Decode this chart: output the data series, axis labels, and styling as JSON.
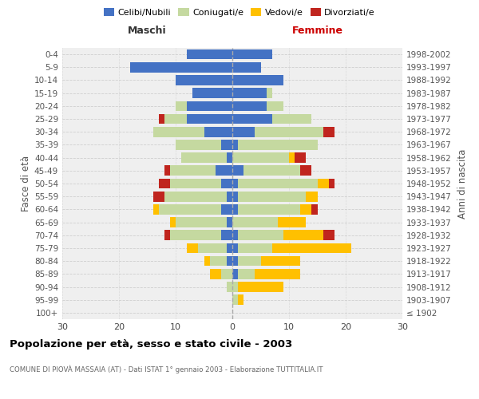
{
  "age_groups": [
    "100+",
    "95-99",
    "90-94",
    "85-89",
    "80-84",
    "75-79",
    "70-74",
    "65-69",
    "60-64",
    "55-59",
    "50-54",
    "45-49",
    "40-44",
    "35-39",
    "30-34",
    "25-29",
    "20-24",
    "15-19",
    "10-14",
    "5-9",
    "0-4"
  ],
  "birth_years": [
    "≤ 1902",
    "1903-1907",
    "1908-1912",
    "1913-1917",
    "1918-1922",
    "1923-1927",
    "1928-1932",
    "1933-1937",
    "1938-1942",
    "1943-1947",
    "1948-1952",
    "1953-1957",
    "1958-1962",
    "1963-1967",
    "1968-1972",
    "1973-1977",
    "1978-1982",
    "1983-1987",
    "1988-1992",
    "1993-1997",
    "1998-2002"
  ],
  "maschi": {
    "celibe": [
      0,
      0,
      0,
      0,
      1,
      1,
      2,
      1,
      2,
      1,
      2,
      3,
      1,
      2,
      5,
      8,
      8,
      7,
      10,
      18,
      8
    ],
    "coniugato": [
      0,
      0,
      1,
      2,
      3,
      5,
      9,
      9,
      11,
      11,
      9,
      8,
      8,
      8,
      9,
      4,
      2,
      0,
      0,
      0,
      0
    ],
    "vedovo": [
      0,
      0,
      0,
      2,
      1,
      2,
      0,
      1,
      1,
      0,
      0,
      0,
      0,
      0,
      0,
      0,
      0,
      0,
      0,
      0,
      0
    ],
    "divorziato": [
      0,
      0,
      0,
      0,
      0,
      0,
      1,
      0,
      0,
      2,
      2,
      1,
      0,
      0,
      0,
      1,
      0,
      0,
      0,
      0,
      0
    ]
  },
  "femmine": {
    "nubile": [
      0,
      0,
      0,
      1,
      1,
      1,
      1,
      0,
      1,
      1,
      1,
      2,
      0,
      1,
      4,
      7,
      6,
      6,
      9,
      5,
      7
    ],
    "coniugata": [
      0,
      1,
      1,
      3,
      4,
      6,
      8,
      8,
      11,
      12,
      14,
      10,
      10,
      14,
      12,
      7,
      3,
      1,
      0,
      0,
      0
    ],
    "vedova": [
      0,
      1,
      8,
      8,
      7,
      14,
      7,
      5,
      2,
      2,
      2,
      0,
      1,
      0,
      0,
      0,
      0,
      0,
      0,
      0,
      0
    ],
    "divorziata": [
      0,
      0,
      0,
      0,
      0,
      0,
      2,
      0,
      1,
      0,
      1,
      2,
      2,
      0,
      2,
      0,
      0,
      0,
      0,
      0,
      0
    ]
  },
  "colors": {
    "celibe": "#4472c4",
    "coniugato": "#c5d9a0",
    "vedovo": "#ffc000",
    "divorziato": "#c0251e"
  },
  "xlim": 30,
  "title": "Popolazione per età, sesso e stato civile - 2003",
  "subtitle": "COMUNE DI PIOVÀ MASSAIA (AT) - Dati ISTAT 1° gennaio 2003 - Elaborazione TUTTITALIA.IT",
  "ylabel_left": "Fasce di età",
  "ylabel_right": "Anni di nascita",
  "xlabel_maschi": "Maschi",
  "xlabel_femmine": "Femmine",
  "legend_labels": [
    "Celibi/Nubili",
    "Coniugati/e",
    "Vedovi/e",
    "Divorziati/e"
  ],
  "legend_color_keys": [
    "celibe",
    "coniugato",
    "vedovo",
    "divorziato"
  ],
  "bg_color": "#efefef",
  "grid_color": "#cccccc"
}
